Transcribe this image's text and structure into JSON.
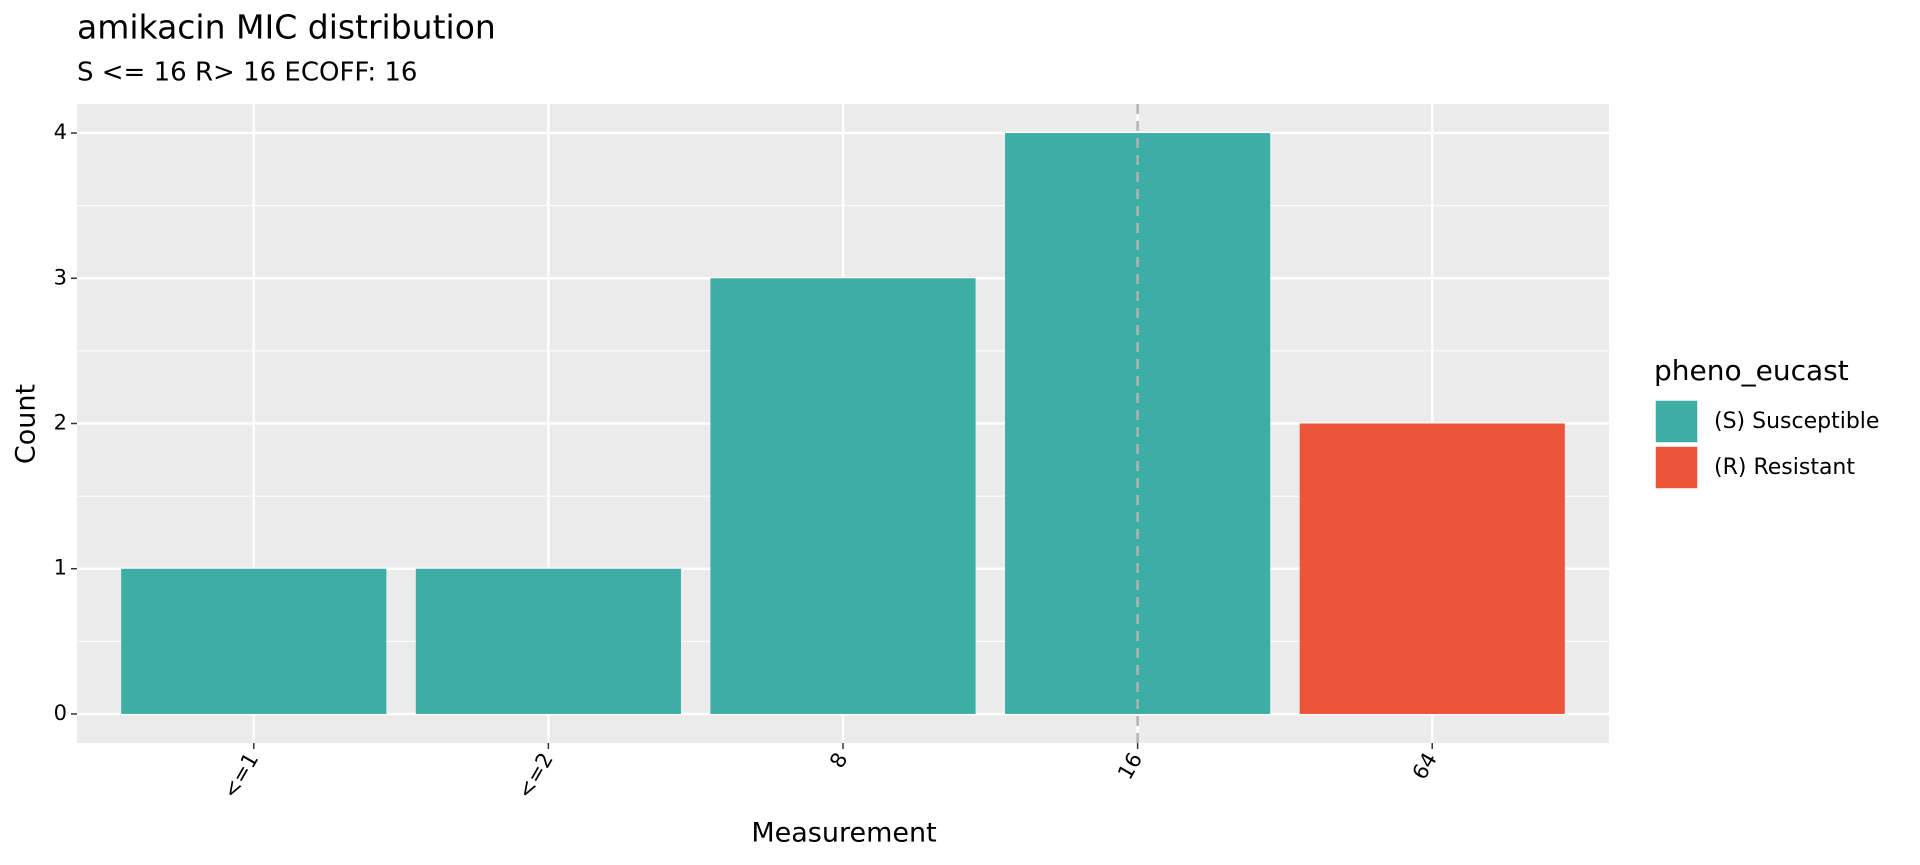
{
  "chart_data": {
    "type": "bar",
    "title": "amikacin MIC distribution",
    "subtitle": "S <= 16 R> 16 ECOFF: 16",
    "x_label": "Measurement",
    "y_label": "Count",
    "categories": [
      "<=1",
      "<=2",
      "8",
      "16",
      "64"
    ],
    "legend_title": "pheno_eucast",
    "series": [
      {
        "name": "(S) Susceptible",
        "color": "#3CAEA3",
        "values": [
          1,
          1,
          3,
          4,
          null
        ]
      },
      {
        "name": "(R) Resistant",
        "color": "#ED553B",
        "values": [
          null,
          null,
          null,
          null,
          2
        ]
      }
    ],
    "ylim": [
      -0.2,
      4.2
    ],
    "yticks": [
      0,
      1,
      2,
      3,
      4
    ],
    "grid": true,
    "vline_at": "16",
    "legend_position": "right"
  }
}
